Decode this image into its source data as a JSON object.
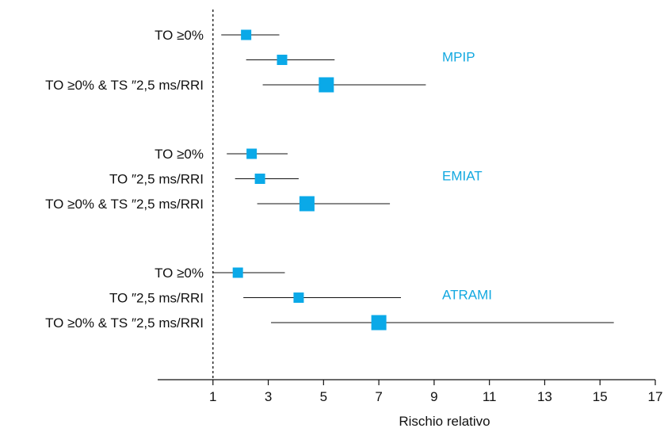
{
  "colors": {
    "marker": "#0aa9e8",
    "group_label": "#12a8e0",
    "lines": "#111111"
  },
  "chart_data": {
    "type": "forest",
    "xlabel": "Rischio relativo",
    "xlim": [
      -1,
      17
    ],
    "xticks": [
      1,
      3,
      5,
      7,
      9,
      11,
      13,
      15,
      17
    ],
    "reference_line": 1,
    "groups": [
      {
        "name": "MPIP",
        "rows": [
          {
            "label": "TO ≥0%",
            "estimate": 2.2,
            "ci": [
              1.3,
              3.4
            ],
            "size": 1
          },
          {
            "label": "",
            "estimate": 3.5,
            "ci": [
              2.2,
              5.4
            ],
            "size": 1
          },
          {
            "label": "TO ≥0% & TS ″2,5 ms/RRI",
            "estimate": 5.1,
            "ci": [
              2.8,
              8.7
            ],
            "size": 2
          }
        ]
      },
      {
        "name": "EMIAT",
        "rows": [
          {
            "label": "TO ≥0%",
            "estimate": 2.4,
            "ci": [
              1.5,
              3.7
            ],
            "size": 1
          },
          {
            "label": "TO ″2,5 ms/RRI",
            "estimate": 2.7,
            "ci": [
              1.8,
              4.1
            ],
            "size": 1
          },
          {
            "label": "TO ≥0% & TS ″2,5 ms/RRI",
            "estimate": 4.4,
            "ci": [
              2.6,
              7.4
            ],
            "size": 2
          }
        ]
      },
      {
        "name": "ATRAMI",
        "rows": [
          {
            "label": "TO ≥0%",
            "estimate": 1.9,
            "ci": [
              1.0,
              3.6
            ],
            "size": 1
          },
          {
            "label": "TO ″2,5 ms/RRI",
            "estimate": 4.1,
            "ci": [
              2.1,
              7.8
            ],
            "size": 1
          },
          {
            "label": "TO ≥0% & TS ″2,5 ms/RRI",
            "estimate": 7.0,
            "ci": [
              3.1,
              15.5
            ],
            "size": 2
          }
        ]
      }
    ]
  }
}
